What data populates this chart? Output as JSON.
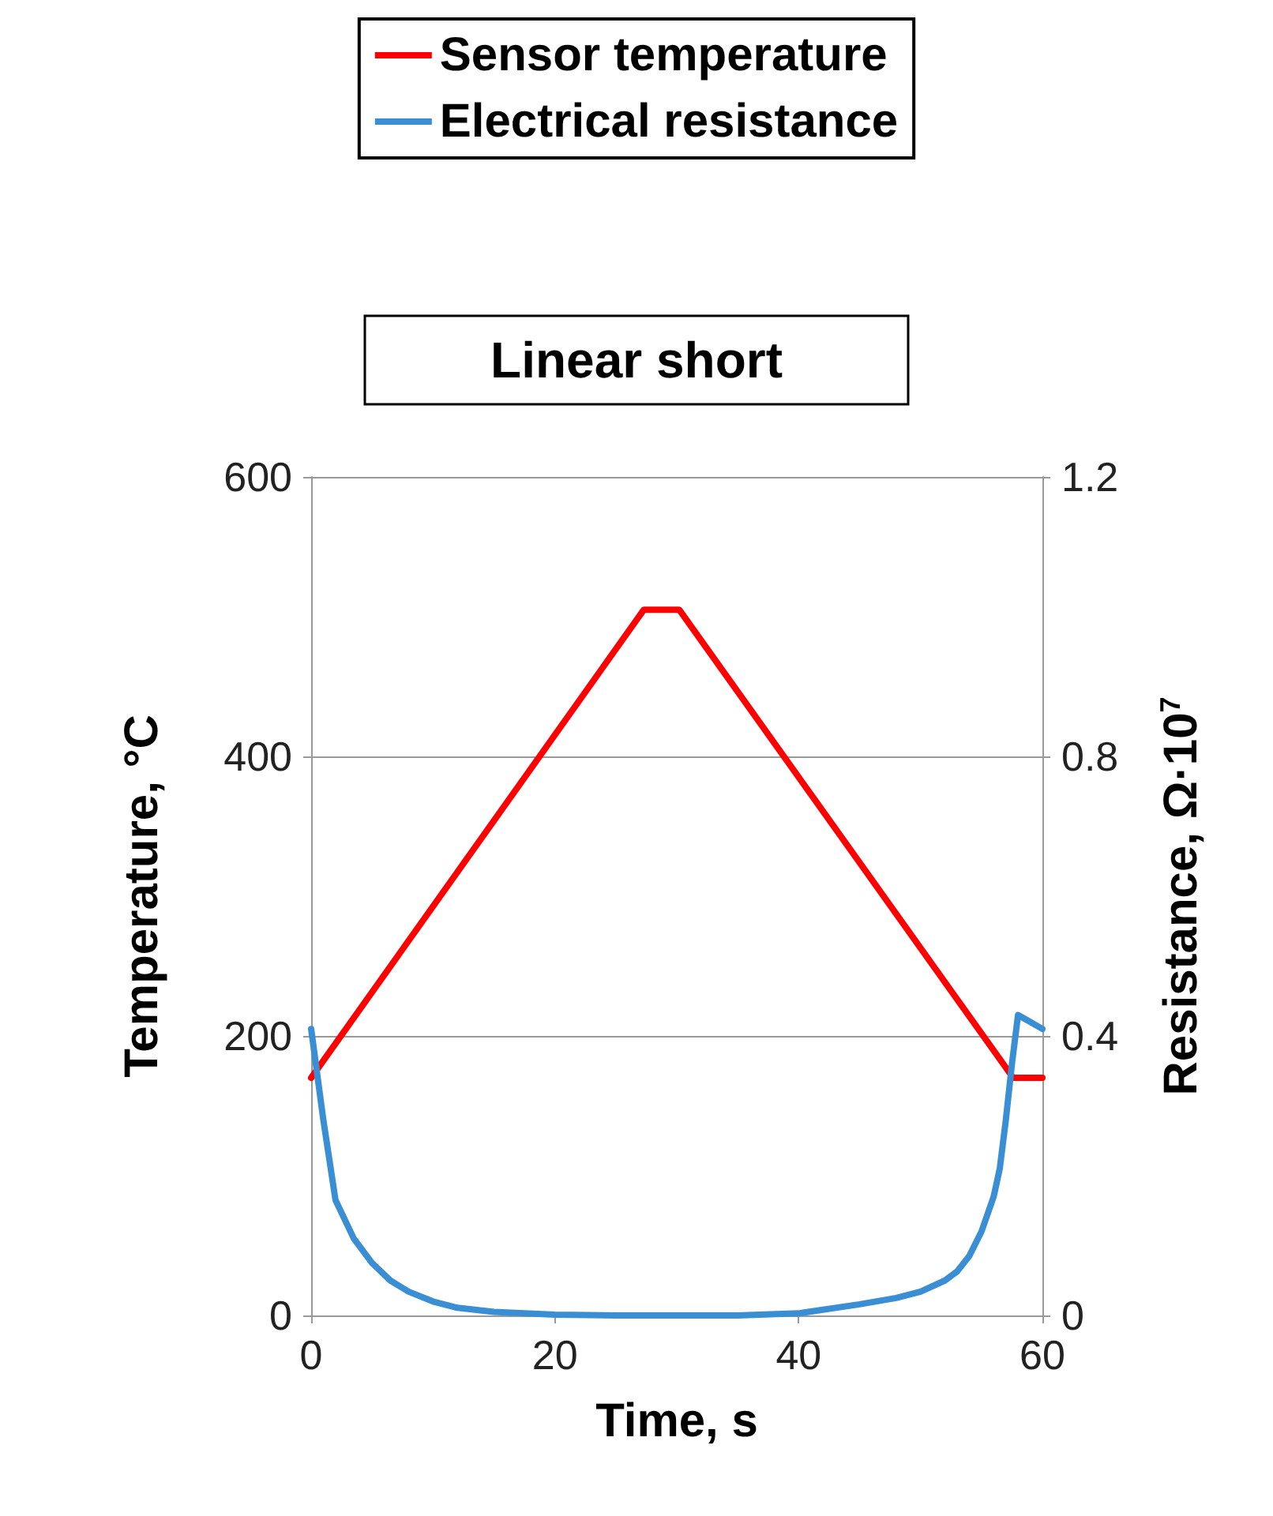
{
  "chart_data": {
    "type": "line",
    "title": "Linear short",
    "xlabel": "Time, s",
    "ylabel": "Temperature, °C",
    "y2label": "Resistance, Ω·10$^{7}$",
    "xlim": [
      0,
      60
    ],
    "xticks": [
      0,
      20,
      40,
      60
    ],
    "ylim": [
      0,
      600
    ],
    "yticks": [
      0,
      200,
      400,
      600
    ],
    "y2lim": [
      0,
      1.2
    ],
    "y2ticks": [
      0,
      0.4,
      0.8,
      1.2
    ],
    "grid": "y",
    "legend": "top",
    "marker": "none",
    "line_style": "solid",
    "series": [
      {
        "name": "Sensor temperature",
        "color": "#ff0000",
        "x": [
          0,
          27.3,
          30.2,
          57.6,
          60
        ],
        "values": [
          170,
          505,
          505,
          170,
          170
        ]
      },
      {
        "name": "Electrical resistance",
        "color": "#3a8fd4",
        "axis": "y2",
        "x": [
          0,
          1,
          2,
          3.5,
          5,
          6.5,
          8,
          10,
          12,
          15,
          20,
          25,
          30,
          35,
          40,
          45,
          48,
          50,
          52,
          53,
          54,
          55,
          56,
          56.5,
          57,
          57.5,
          58,
          59,
          60
        ],
        "values": [
          0.41,
          0.28,
          0.165,
          0.11,
          0.075,
          0.05,
          0.034,
          0.02,
          0.011,
          0.005,
          0.001,
          0,
          0,
          0,
          0.003,
          0.016,
          0.025,
          0.034,
          0.05,
          0.063,
          0.085,
          0.12,
          0.17,
          0.21,
          0.28,
          0.36,
          0.43,
          0.42,
          0.41
        ]
      }
    ]
  }
}
